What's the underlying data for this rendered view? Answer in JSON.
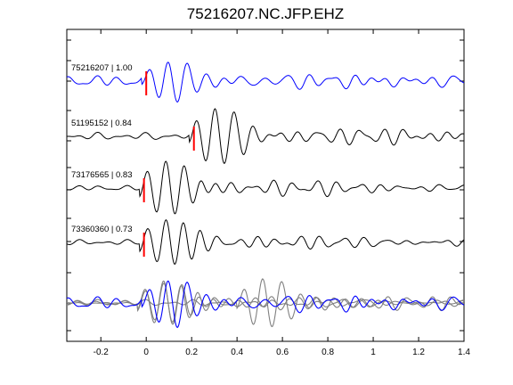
{
  "chart_data": {
    "type": "line",
    "title": "75216207.NC.JFP.EHZ",
    "xlim": [
      -0.35,
      1.4
    ],
    "x_ticks": [
      "-0.2",
      "0",
      "0.2",
      "0.4",
      "0.6",
      "0.8",
      "1",
      "1.2",
      "1.4"
    ],
    "x_tick_values": [
      -0.2,
      0,
      0.2,
      0.4,
      0.6,
      0.8,
      1.0,
      1.2,
      1.4
    ],
    "grid": false,
    "traces": [
      {
        "label": "75216207 | 1.00",
        "color": "#0000ff",
        "pick_time": 0.0,
        "phase_shift": 0.0,
        "noise_amp": 0.55,
        "signal_amp": 1.0,
        "coda_amp": 0.45
      },
      {
        "label": "51195152 | 0.84",
        "color": "#000000",
        "pick_time": 0.21,
        "phase_shift": 0.0,
        "noise_amp": 0.25,
        "signal_amp": 1.0,
        "coda_amp": 0.62
      },
      {
        "label": "73176565 | 0.83",
        "color": "#000000",
        "pick_time": -0.01,
        "phase_shift": 0.0,
        "noise_amp": 0.18,
        "signal_amp": 1.0,
        "coda_amp": 0.55
      },
      {
        "label": "73360360 | 0.73",
        "color": "#000000",
        "pick_time": -0.01,
        "phase_shift": 0.0,
        "noise_amp": 0.18,
        "signal_amp": 1.0,
        "coda_amp": 0.5
      }
    ],
    "stack": {
      "description_color_overlay": "#808080",
      "reference_color": "#0000ff"
    },
    "pick_color": "#ff0000"
  }
}
